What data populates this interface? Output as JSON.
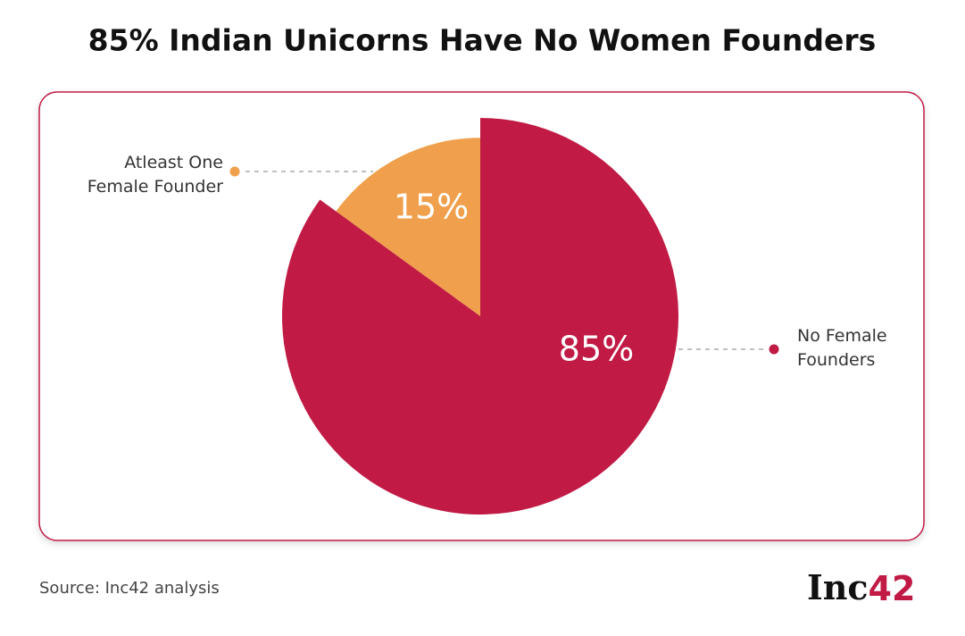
{
  "chart_data": {
    "type": "pie",
    "title": "85% Indian Unicorns Have No Women Founders",
    "categories": [
      "Atleast One Female Founder",
      "No Female Founders"
    ],
    "values": [
      15,
      85
    ],
    "value_labels": [
      "15%",
      "85%"
    ],
    "colors": [
      "#f0a04c",
      "#c01a45"
    ],
    "source": "Source: Inc42 analysis",
    "logo": [
      "Inc",
      "42"
    ]
  }
}
